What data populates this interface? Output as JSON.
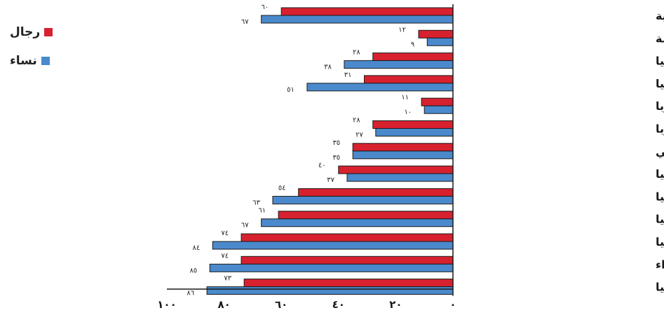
{
  "chart_data": {
    "type": "bar",
    "orientation": "horizontal",
    "x_direction": "right-to-left",
    "xlim": [
      0,
      100
    ],
    "xticks": [
      0,
      20,
      40,
      60,
      80,
      100
    ],
    "xtick_labels": [
      "٠",
      "٢٠",
      "٤٠",
      "٦٠",
      "٨٠",
      "١٠٠"
    ],
    "categories": [
      "المناطق النامية",
      "الأقاليم المتقدمة",
      "غربي آسيا",
      "شمال أفريقيا",
      "رابطة الدول المستقلة- أوروبا",
      "شرق أوروبا",
      "أمريكا اللاتينية والكاريبي",
      "رابطة الدول المستقلة-آسيا",
      "شرقي آسيا",
      "جنوب شرق آسيا",
      "جنوب آسيا",
      "أفريقيا جنوب الصحراء",
      "أقيانوسيا"
    ],
    "series": [
      {
        "name": "رجال",
        "color": "#d7212f",
        "values": [
          60,
          12,
          28,
          31,
          11,
          28,
          35,
          40,
          54,
          61,
          74,
          74,
          73
        ],
        "labels": [
          "٦٠",
          "١٢",
          "٢٨",
          "٣١",
          "١١",
          "٢٨",
          "٣٥",
          "٤٠",
          "٥٤",
          "٦١",
          "٧٤",
          "٧٤",
          "٧٣"
        ]
      },
      {
        "name": "نساء",
        "color": "#4a89cc",
        "values": [
          67,
          9,
          38,
          51,
          10,
          27,
          35,
          37,
          63,
          67,
          84,
          85,
          86
        ],
        "labels": [
          "٦٧",
          "٩",
          "٣٨",
          "٥١",
          "١٠",
          "٢٧",
          "٣٥",
          "٣٧",
          "٦٣",
          "٦٧",
          "٨٤",
          "٨٥",
          "٨٦"
        ]
      }
    ],
    "legend_position": "top-left",
    "grid": false
  }
}
